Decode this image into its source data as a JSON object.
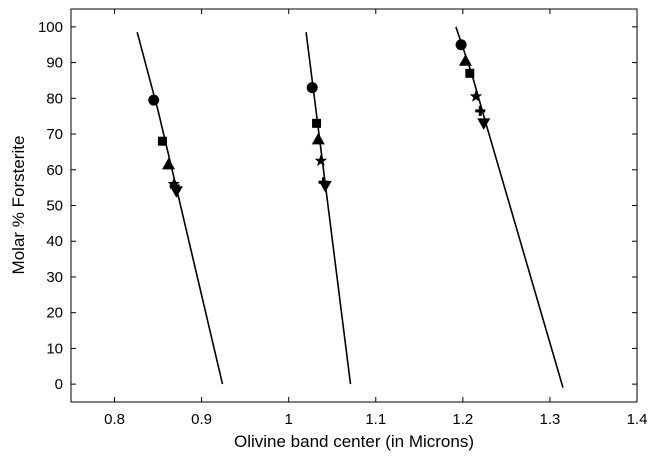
{
  "chart_data": {
    "type": "scatter",
    "title": "",
    "xlabel": "Olivine band center (in Microns)",
    "ylabel": "Molar % Forsterite",
    "xlim": [
      0.75,
      1.4
    ],
    "ylim": [
      -5,
      105
    ],
    "x_ticks": [
      "0.8",
      "0.9",
      "1",
      "1.1",
      "1.2",
      "1.3",
      "1.4"
    ],
    "x_tick_values": [
      0.8,
      0.9,
      1.0,
      1.1,
      1.2,
      1.3,
      1.4
    ],
    "y_ticks": [
      "0",
      "10",
      "20",
      "30",
      "40",
      "50",
      "60",
      "70",
      "80",
      "90",
      "100"
    ],
    "y_tick_values": [
      0,
      10,
      20,
      30,
      40,
      50,
      60,
      70,
      80,
      90,
      100
    ],
    "grid": false,
    "legend": "none",
    "fit_lines": [
      {
        "points": [
          [
            0.826,
            98.5
          ],
          [
            0.85,
            76.5
          ],
          [
            0.87,
            56
          ],
          [
            0.924,
            0
          ]
        ]
      },
      {
        "points": [
          [
            1.02,
            98.5
          ],
          [
            1.033,
            73.5
          ],
          [
            1.042,
            56
          ],
          [
            1.071,
            0
          ]
        ]
      },
      {
        "points": [
          [
            1.192,
            100
          ],
          [
            1.21,
            87
          ],
          [
            1.227,
            72.5
          ],
          [
            1.315,
            -1
          ]
        ]
      }
    ],
    "series": [
      {
        "marker": "circle",
        "points": [
          [
            0.845,
            79.5
          ],
          [
            1.027,
            83
          ],
          [
            1.198,
            95
          ]
        ]
      },
      {
        "marker": "square",
        "points": [
          [
            0.855,
            68
          ],
          [
            1.032,
            73
          ],
          [
            1.208,
            87
          ]
        ]
      },
      {
        "marker": "triangle-up",
        "points": [
          [
            0.862,
            61.5
          ],
          [
            1.034,
            68.5
          ],
          [
            1.203,
            90.5
          ]
        ]
      },
      {
        "marker": "star",
        "points": [
          [
            0.868,
            56
          ],
          [
            1.037,
            62.5
          ],
          [
            1.215,
            80.5
          ]
        ]
      },
      {
        "marker": "plus",
        "points": [
          [
            0.869,
            55.5
          ],
          [
            1.04,
            56.5
          ],
          [
            1.22,
            76.5
          ]
        ]
      },
      {
        "marker": "triangle-down",
        "points": [
          [
            0.871,
            54
          ],
          [
            1.042,
            55.5
          ],
          [
            1.224,
            73
          ]
        ]
      }
    ]
  }
}
